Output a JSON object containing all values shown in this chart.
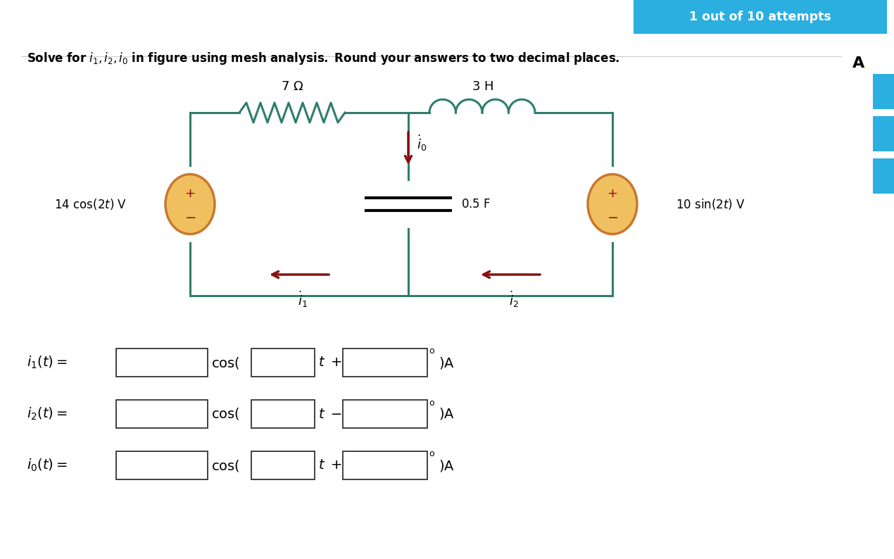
{
  "bg_color": "#ffffff",
  "badge_text": "1 out of 10 attempts",
  "badge_color": "#2baee0",
  "badge_text_color": "#ffffff",
  "circuit_color": "#2e7d6e",
  "source_fill": "#f0c060",
  "source_border": "#c87830",
  "arrow_color": "#8b1010",
  "sidebar_color": "#2baee0",
  "wire_color": "#4a9090"
}
